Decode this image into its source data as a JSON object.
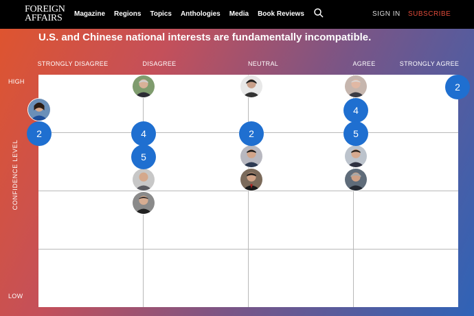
{
  "header": {
    "logo_line1": "FOREIGN",
    "logo_line2": "AFFAIRS",
    "nav": [
      "Magazine",
      "Regions",
      "Topics",
      "Anthologies",
      "Media",
      "Book Reviews"
    ],
    "search_icon": "search-icon",
    "sign_in": "SIGN IN",
    "subscribe": "SUBSCRIBE",
    "subscribe_color": "#e34b3a"
  },
  "question": "U.S. and Chinese national interests are fundamentally incompatible.",
  "columns": [
    "STRONGLY DISAGREE",
    "DISAGREE",
    "NEUTRAL",
    "AGREE",
    "STRONGLY AGREE"
  ],
  "y_axis": {
    "label": "CONFIDENCE LEVEL",
    "high": "HIGH",
    "low": "LOW"
  },
  "counts": {
    "strongly_disagree": "2",
    "disagree_upper": "4",
    "disagree_lower": "5",
    "neutral": "2",
    "agree_upper": "4",
    "agree_lower": "5",
    "strongly_agree": "2"
  },
  "accent_color": "#1f6fd0"
}
